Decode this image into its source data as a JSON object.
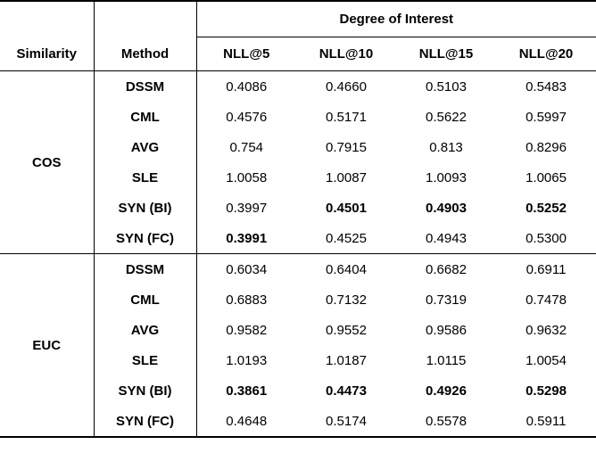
{
  "table": {
    "group_header": "Degree of Interest",
    "col_headers": {
      "similarity": "Similarity",
      "method": "Method",
      "metrics": [
        "NLL@5",
        "NLL@10",
        "NLL@15",
        "NLL@20"
      ]
    },
    "groups": [
      {
        "similarity": "COS",
        "rows": [
          {
            "method": "DSSM",
            "values": [
              "0.4086",
              "0.4660",
              "0.5103",
              "0.5483"
            ],
            "bold": [
              false,
              false,
              false,
              false
            ]
          },
          {
            "method": "CML",
            "values": [
              "0.4576",
              "0.5171",
              "0.5622",
              "0.5997"
            ],
            "bold": [
              false,
              false,
              false,
              false
            ]
          },
          {
            "method": "AVG",
            "values": [
              "0.754",
              "0.7915",
              "0.813",
              "0.8296"
            ],
            "bold": [
              false,
              false,
              false,
              false
            ]
          },
          {
            "method": "SLE",
            "values": [
              "1.0058",
              "1.0087",
              "1.0093",
              "1.0065"
            ],
            "bold": [
              false,
              false,
              false,
              false
            ]
          },
          {
            "method": "SYN (BI)",
            "values": [
              "0.3997",
              "0.4501",
              "0.4903",
              "0.5252"
            ],
            "bold": [
              false,
              true,
              true,
              true
            ]
          },
          {
            "method": "SYN (FC)",
            "values": [
              "0.3991",
              "0.4525",
              "0.4943",
              "0.5300"
            ],
            "bold": [
              true,
              false,
              false,
              false
            ]
          }
        ]
      },
      {
        "similarity": "EUC",
        "rows": [
          {
            "method": "DSSM",
            "values": [
              "0.6034",
              "0.6404",
              "0.6682",
              "0.6911"
            ],
            "bold": [
              false,
              false,
              false,
              false
            ]
          },
          {
            "method": "CML",
            "values": [
              "0.6883",
              "0.7132",
              "0.7319",
              "0.7478"
            ],
            "bold": [
              false,
              false,
              false,
              false
            ]
          },
          {
            "method": "AVG",
            "values": [
              "0.9582",
              "0.9552",
              "0.9586",
              "0.9632"
            ],
            "bold": [
              false,
              false,
              false,
              false
            ]
          },
          {
            "method": "SLE",
            "values": [
              "1.0193",
              "1.0187",
              "1.0115",
              "1.0054"
            ],
            "bold": [
              false,
              false,
              false,
              false
            ]
          },
          {
            "method": "SYN (BI)",
            "values": [
              "0.3861",
              "0.4473",
              "0.4926",
              "0.5298"
            ],
            "bold": [
              true,
              true,
              true,
              true
            ]
          },
          {
            "method": "SYN (FC)",
            "values": [
              "0.4648",
              "0.5174",
              "0.5578",
              "0.5911"
            ],
            "bold": [
              false,
              false,
              false,
              false
            ]
          }
        ]
      }
    ]
  }
}
